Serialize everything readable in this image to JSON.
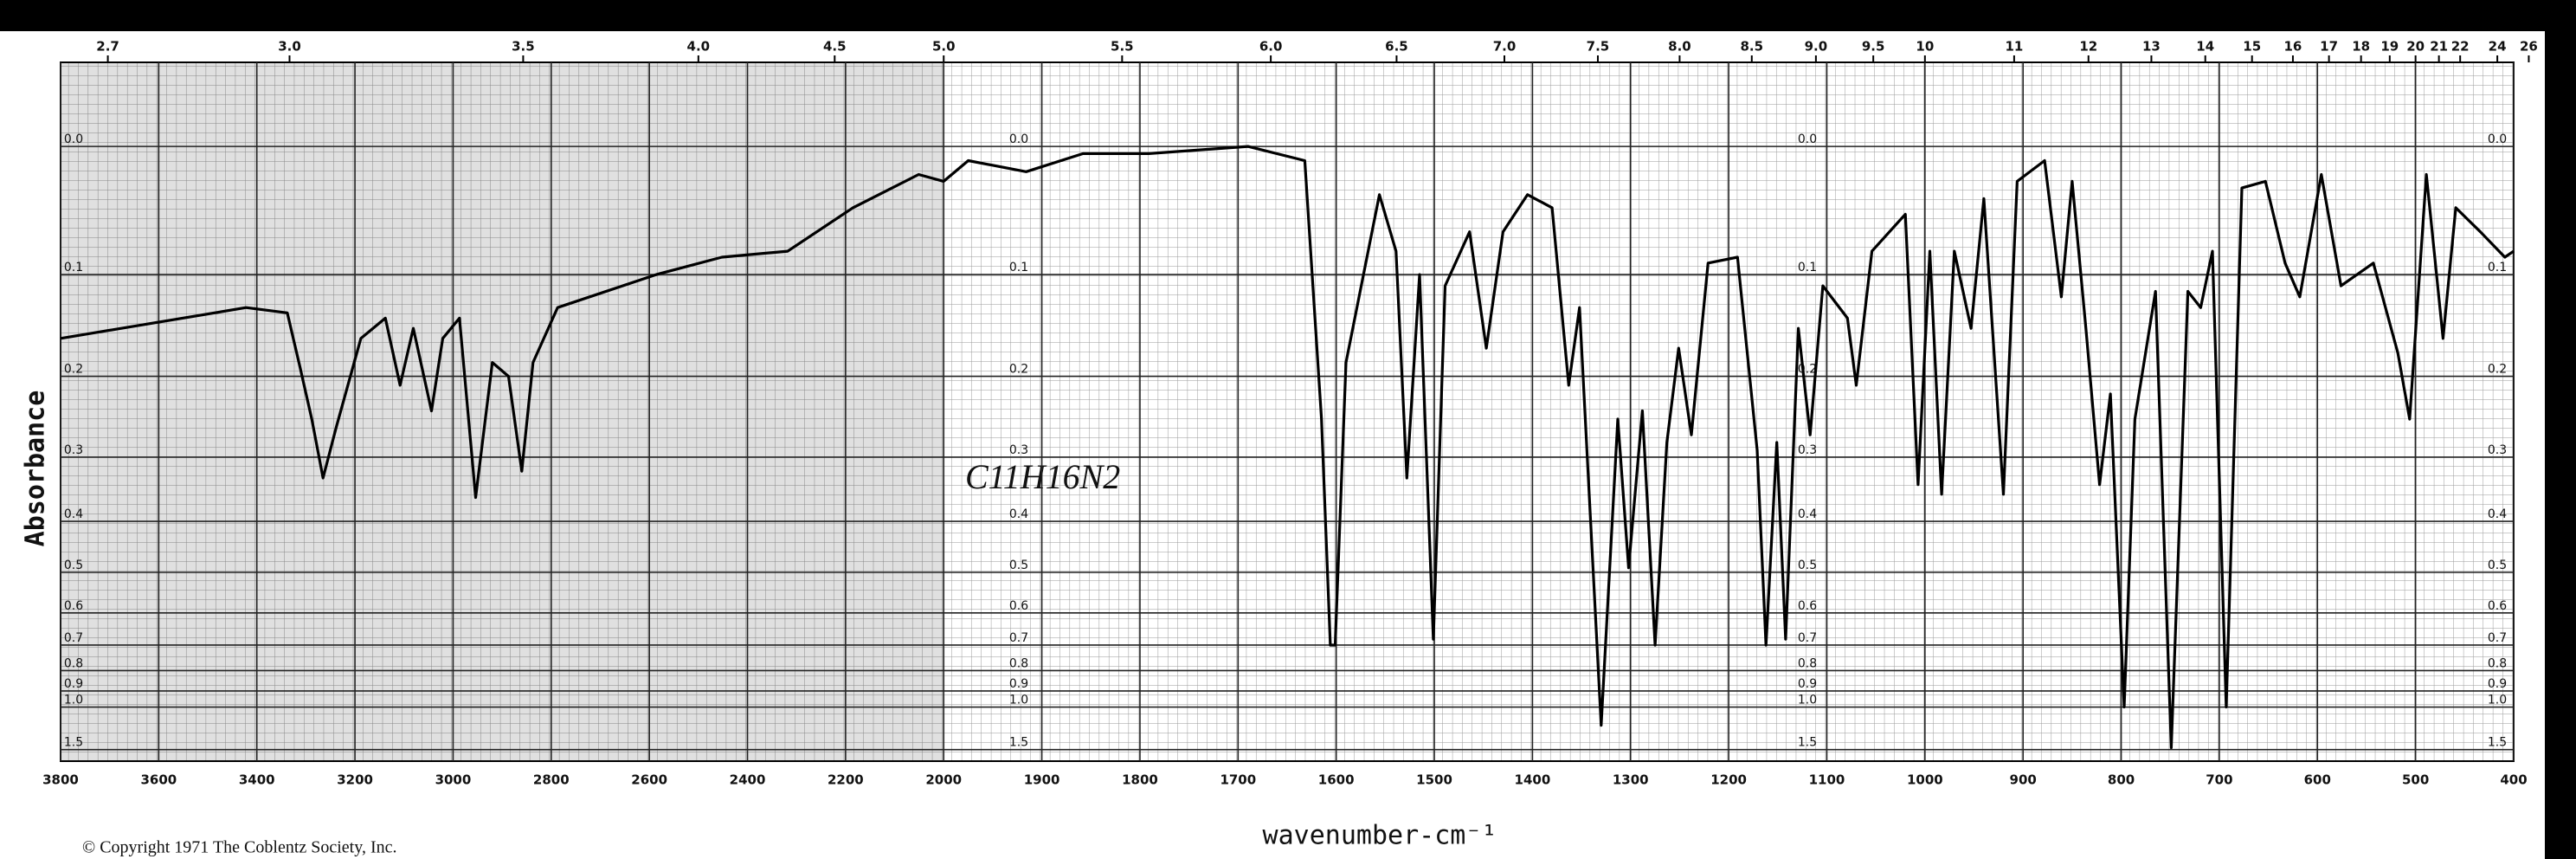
{
  "chart_data": {
    "type": "line",
    "x_label": "wavenumber-cm⁻¹",
    "y_label": "Absorbance",
    "source": "© Copyright 1971 The Coblentz Society, Inc.",
    "annotations": [
      "C11H16N2"
    ],
    "yscale": "absorbance",
    "grid": true,
    "xlim": [
      3800,
      400
    ],
    "xticks": [
      3800,
      3600,
      3400,
      3200,
      3000,
      2800,
      2600,
      2400,
      2200,
      2000,
      1900,
      1800,
      1700,
      1600,
      1500,
      1400,
      1300,
      1200,
      1100,
      1000,
      900,
      800,
      700,
      600,
      500,
      400
    ],
    "x2ticks": [
      2.7,
      {
        "value": 3,
        "label": "3.0"
      },
      3.5,
      {
        "value": 4,
        "label": "4.0"
      },
      4.5,
      {
        "value": 5,
        "label": "5.0"
      },
      5.5,
      {
        "value": 6,
        "label": "6.0"
      },
      6.5,
      {
        "value": 7,
        "label": "7.0"
      },
      7.5,
      {
        "value": 8,
        "label": "8.0"
      },
      8.5,
      {
        "value": 9,
        "label": "9.0"
      },
      9.5,
      10,
      11,
      12,
      13,
      14,
      15,
      16,
      17,
      18,
      19,
      20,
      21,
      22,
      24,
      26
    ],
    "ylim": [
      -0.055,
      1.88
    ],
    "yticks": [
      {
        "value": 0,
        "label": "0.0"
      },
      0.1,
      0.2,
      0.3,
      0.4,
      0.5,
      0.6,
      0.7,
      0.8,
      0.9,
      {
        "value": 1,
        "label": "1.0"
      },
      1.5
    ],
    "x": [
      3800,
      3422,
      3338,
      3312,
      3288,
      3265,
      3238,
      3188,
      3138,
      3108,
      3081,
      3044,
      3021,
      2987,
      2954,
      2920,
      2887,
      2860,
      2837,
      2787,
      2586,
      2452,
      2318,
      2185,
      2051,
      2000,
      1975,
      1916,
      1858,
      1791,
      1690,
      1632,
      1615,
      1606,
      1601,
      1590,
      1556,
      1539,
      1528,
      1515,
      1501,
      1489,
      1464,
      1447,
      1430,
      1405,
      1380,
      1363,
      1352,
      1330,
      1313,
      1302,
      1288,
      1275,
      1263,
      1251,
      1238,
      1221,
      1191,
      1171,
      1162,
      1151,
      1142,
      1129,
      1117,
      1104,
      1079,
      1070,
      1054,
      1020,
      1007,
      995,
      983,
      970,
      953,
      940,
      920,
      906,
      878,
      861,
      850,
      836,
      822,
      811,
      797,
      786,
      765,
      749,
      732,
      719,
      707,
      693,
      677,
      653,
      633,
      618,
      596,
      576,
      543,
      518,
      506,
      489,
      472,
      459,
      434,
      409,
      400
    ],
    "series": [
      {
        "color": "#000000",
        "values": [
          0.16,
          0.13,
          0.135,
          0.19,
          0.25,
          0.33,
          0.26,
          0.16,
          0.14,
          0.21,
          0.15,
          0.24,
          0.16,
          0.14,
          0.36,
          0.185,
          0.2,
          0.32,
          0.185,
          0.13,
          0.1,
          0.085,
          0.08,
          0.045,
          0.02,
          0.025,
          0.01,
          0.018,
          0.005,
          0.005,
          0,
          0.01,
          0.25,
          0.7,
          0.7,
          0.185,
          0.035,
          0.08,
          0.33,
          0.1,
          0.68,
          0.11,
          0.064,
          0.17,
          0.064,
          0.035,
          0.045,
          0.21,
          0.13,
          1.15,
          0.25,
          0.49,
          0.24,
          0.7,
          0.28,
          0.17,
          0.27,
          0.09,
          0.085,
          0.29,
          0.7,
          0.28,
          0.68,
          0.15,
          0.27,
          0.11,
          0.14,
          0.21,
          0.08,
          0.05,
          0.34,
          0.08,
          0.355,
          0.08,
          0.15,
          0.038,
          0.355,
          0.025,
          0.01,
          0.12,
          0.025,
          0.15,
          0.34,
          0.22,
          1.0,
          0.25,
          0.115,
          1.46,
          0.115,
          0.13,
          0.08,
          1.0,
          0.03,
          0.025,
          0.09,
          0.12,
          0.02,
          0.11,
          0.09,
          0.175,
          0.25,
          0.02,
          0.16,
          0.045,
          0.064,
          0.085,
          0.08
        ]
      }
    ]
  }
}
